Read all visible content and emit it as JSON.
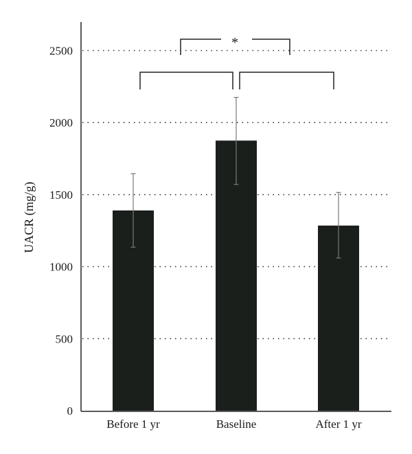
{
  "chart_data": {
    "type": "bar",
    "categories": [
      "Before 1 yr",
      "Baseline",
      "After 1 yr"
    ],
    "values": [
      1390,
      1875,
      1285
    ],
    "error": [
      [
        1135,
        1645
      ],
      [
        1570,
        2175
      ],
      [
        1060,
        1515
      ]
    ],
    "ylabel": "UACR (mg/g)",
    "xlabel": "",
    "ylim": [
      0,
      2700
    ],
    "yticks": [
      0,
      500,
      1000,
      1500,
      2000,
      2500
    ],
    "ytick_labels": [
      "0",
      "500",
      "1000",
      "1500",
      "2000",
      "2500"
    ],
    "grid": "horizontal dotted",
    "bar_color": "#1b1f1c",
    "significance": {
      "label": "*",
      "brackets": [
        {
          "from": "Before 1 yr",
          "to": "Baseline"
        },
        {
          "from": "Baseline",
          "to": "After 1 yr"
        },
        {
          "from": "Before 1 yr",
          "to": "After 1 yr"
        }
      ]
    }
  }
}
